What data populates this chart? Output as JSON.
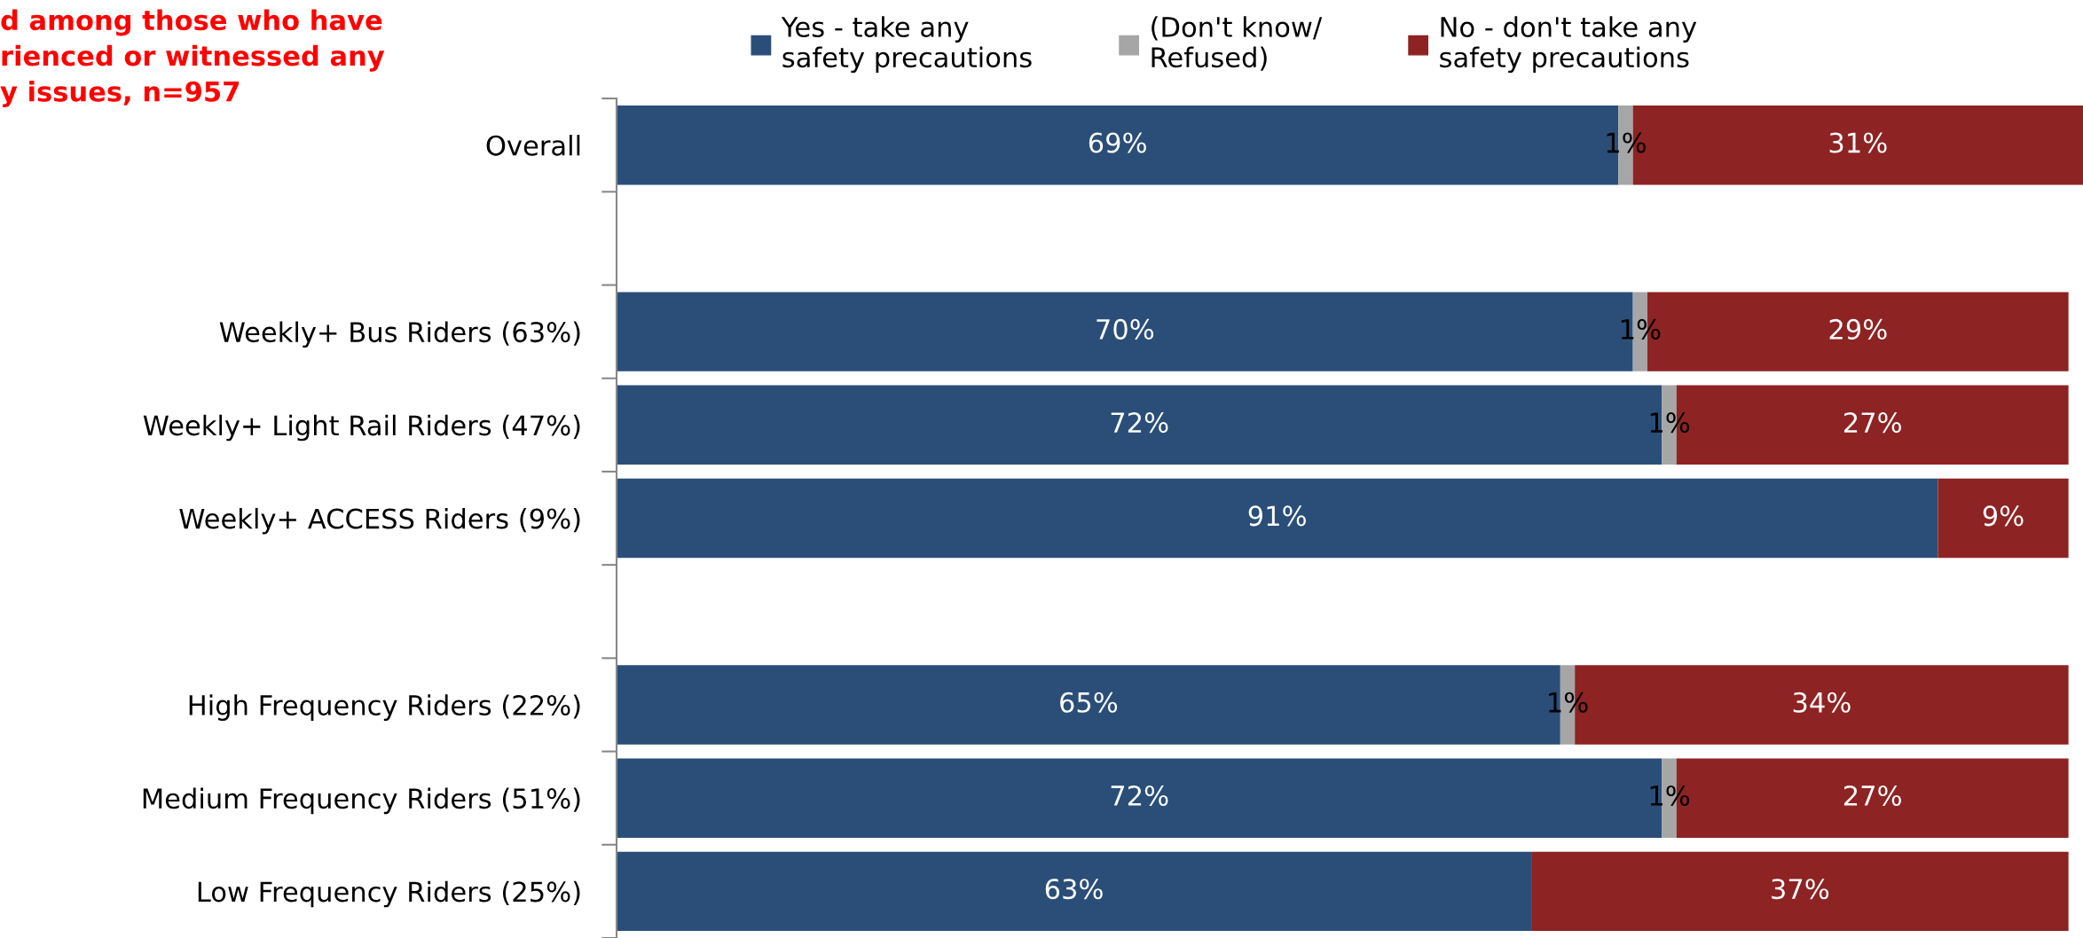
{
  "chart_data": {
    "type": "bar",
    "orientation": "horizontal",
    "stacked": true,
    "legend": "top",
    "grid": false,
    "title": "d among those who have\nrienced or witnessed any\ny issues, n=957",
    "categories": [
      "Overall",
      null,
      "Weekly+ Bus Riders (63%)",
      "Weekly+ Light Rail Riders (47%)",
      "Weekly+ ACCESS Riders (9%)",
      null,
      "High Frequency Riders (22%)",
      "Medium Frequency Riders (51%)",
      "Low Frequency Riders (25%)"
    ],
    "series": [
      {
        "name": "Yes - take any\nsafety precautions",
        "color": "#2a4e78",
        "values": [
          69,
          null,
          70,
          72,
          91,
          null,
          65,
          72,
          63
        ],
        "value_labels": [
          "69%",
          null,
          "70%",
          "72%",
          "91%",
          null,
          "65%",
          "72%",
          "63%"
        ]
      },
      {
        "name": "(Don't know/\nRefused)",
        "color": "#a6a6a6",
        "values": [
          1,
          null,
          1,
          1,
          null,
          null,
          1,
          1,
          null
        ],
        "value_labels": [
          "1%",
          null,
          "1%",
          "1%",
          null,
          null,
          "1%",
          "1%",
          null
        ]
      },
      {
        "name": "No - don't take any\nsafety precautions",
        "color": "#8e2323",
        "values": [
          31,
          null,
          29,
          27,
          9,
          null,
          34,
          27,
          37
        ],
        "value_labels": [
          "31%",
          null,
          "29%",
          "27%",
          "9%",
          null,
          "34%",
          "27%",
          "37%"
        ]
      }
    ]
  }
}
